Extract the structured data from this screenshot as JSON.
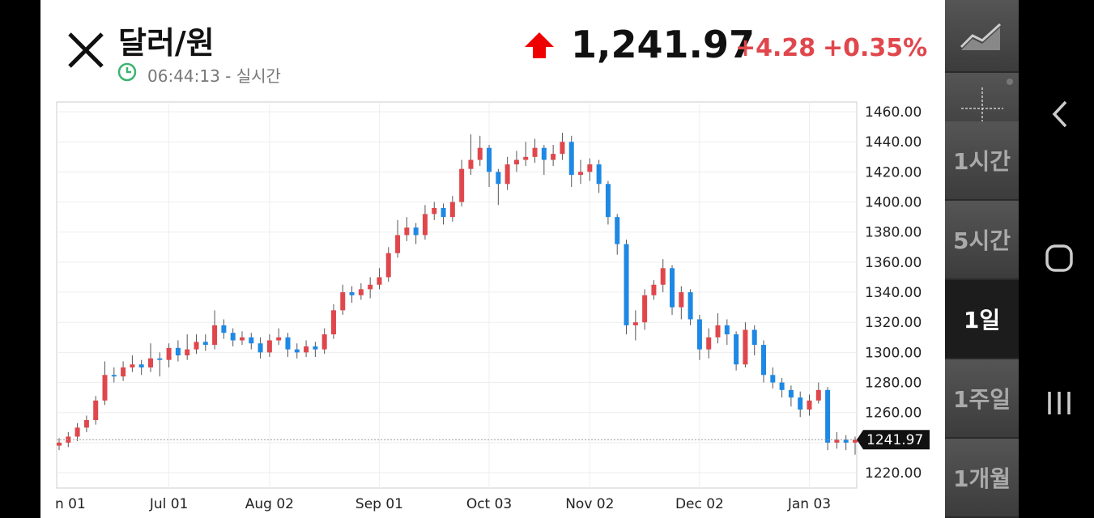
{
  "header": {
    "title": "달러/원",
    "time": "06:44:13 - 실시간",
    "price": "1,241.97",
    "change": "+4.28",
    "change_pct": "+0.35%"
  },
  "sidebar": {
    "intervals": [
      "1시간",
      "5시간",
      "1일",
      "1주일",
      "1개월"
    ],
    "selected": 2
  },
  "chart_data": {
    "type": "candlestick",
    "up_color": "#e0474c",
    "down_color": "#1e88e5",
    "categories": [
      "n 01",
      null,
      null,
      null,
      null,
      null,
      null,
      null,
      null,
      null,
      null,
      null,
      "Jul 01",
      null,
      null,
      null,
      null,
      null,
      null,
      null,
      null,
      null,
      null,
      "Aug 02",
      null,
      null,
      null,
      null,
      null,
      null,
      null,
      null,
      null,
      null,
      null,
      "Sep 01",
      null,
      null,
      null,
      null,
      null,
      null,
      null,
      null,
      null,
      null,
      null,
      "Oct 03",
      null,
      null,
      null,
      null,
      null,
      null,
      null,
      null,
      null,
      null,
      "Nov 02",
      null,
      null,
      null,
      null,
      null,
      null,
      null,
      null,
      null,
      null,
      null,
      "Dec 02",
      null,
      null,
      null,
      null,
      null,
      null,
      null,
      null,
      null,
      null,
      null,
      "Jan 03",
      null,
      null,
      null,
      null,
      null
    ],
    "open": [
      1238,
      1240,
      1244,
      1250,
      1255,
      1268,
      1285,
      1284,
      1290,
      1292,
      1290,
      1296,
      1295,
      1303,
      1298,
      1302,
      1307,
      1305,
      1318,
      1313,
      1308,
      1310,
      1306,
      1300,
      1308,
      1310,
      1302,
      1300,
      1304,
      1302,
      1312,
      1328,
      1340,
      1338,
      1342,
      1345,
      1350,
      1366,
      1378,
      1383,
      1378,
      1392,
      1396,
      1390,
      1400,
      1422,
      1428,
      1436,
      1420,
      1412,
      1425,
      1428,
      1430,
      1436,
      1428,
      1432,
      1440,
      1418,
      1420,
      1425,
      1412,
      1390,
      1372,
      1318,
      1320,
      1338,
      1345,
      1356,
      1330,
      1340,
      1322,
      1302,
      1310,
      1318,
      1312,
      1292,
      1315,
      1305,
      1285,
      1280,
      1275,
      1270,
      1262,
      1268,
      1275,
      1240,
      1242,
      1240
    ],
    "high": [
      1243,
      1247,
      1253,
      1258,
      1271,
      1294,
      1290,
      1294,
      1298,
      1295,
      1306,
      1300,
      1306,
      1308,
      1312,
      1312,
      1312,
      1328,
      1322,
      1316,
      1314,
      1313,
      1310,
      1312,
      1316,
      1313,
      1306,
      1308,
      1307,
      1316,
      1332,
      1345,
      1344,
      1346,
      1350,
      1356,
      1370,
      1388,
      1390,
      1386,
      1398,
      1400,
      1399,
      1404,
      1428,
      1445,
      1444,
      1438,
      1422,
      1430,
      1434,
      1440,
      1442,
      1438,
      1438,
      1446,
      1444,
      1428,
      1429,
      1428,
      1414,
      1392,
      1375,
      1328,
      1342,
      1348,
      1362,
      1358,
      1344,
      1342,
      1325,
      1316,
      1326,
      1322,
      1314,
      1320,
      1318,
      1308,
      1290,
      1283,
      1278,
      1274,
      1272,
      1280,
      1277,
      1247,
      1245,
      1244
    ],
    "low": [
      1235,
      1237,
      1241,
      1247,
      1252,
      1265,
      1280,
      1281,
      1287,
      1285,
      1287,
      1284,
      1290,
      1294,
      1295,
      1299,
      1301,
      1302,
      1309,
      1304,
      1305,
      1302,
      1296,
      1297,
      1305,
      1297,
      1296,
      1297,
      1297,
      1299,
      1309,
      1325,
      1333,
      1335,
      1336,
      1342,
      1347,
      1363,
      1374,
      1372,
      1375,
      1388,
      1385,
      1387,
      1397,
      1418,
      1424,
      1410,
      1398,
      1408,
      1420,
      1424,
      1426,
      1418,
      1424,
      1428,
      1410,
      1412,
      1414,
      1406,
      1385,
      1365,
      1312,
      1308,
      1315,
      1335,
      1340,
      1325,
      1322,
      1318,
      1295,
      1296,
      1306,
      1305,
      1288,
      1290,
      1298,
      1280,
      1276,
      1270,
      1264,
      1257,
      1258,
      1266,
      1235,
      1236,
      1235,
      1232
    ],
    "close": [
      1240,
      1244,
      1250,
      1255,
      1268,
      1285,
      1284,
      1290,
      1292,
      1290,
      1296,
      1295,
      1303,
      1298,
      1302,
      1307,
      1305,
      1318,
      1313,
      1308,
      1310,
      1306,
      1300,
      1308,
      1310,
      1302,
      1300,
      1304,
      1302,
      1312,
      1328,
      1340,
      1338,
      1342,
      1345,
      1350,
      1366,
      1378,
      1383,
      1378,
      1392,
      1396,
      1390,
      1400,
      1422,
      1428,
      1436,
      1420,
      1412,
      1425,
      1428,
      1430,
      1436,
      1428,
      1432,
      1440,
      1418,
      1420,
      1425,
      1412,
      1390,
      1372,
      1318,
      1320,
      1338,
      1345,
      1356,
      1330,
      1340,
      1322,
      1302,
      1310,
      1318,
      1312,
      1292,
      1315,
      1305,
      1285,
      1280,
      1275,
      1270,
      1262,
      1268,
      1275,
      1240,
      1242,
      1240,
      1241.97
    ],
    "last_price": 1241.97,
    "ylim": [
      1209.8,
      1466.5
    ],
    "yticks": [
      {
        "value": 1220,
        "label": "1220.00"
      },
      {
        "value": 1240,
        "label": "1240.00"
      },
      {
        "value": 1260,
        "label": "1260.00"
      },
      {
        "value": 1280,
        "label": "1280.00"
      },
      {
        "value": 1300,
        "label": "1300.00"
      },
      {
        "value": 1320,
        "label": "1320.00"
      },
      {
        "value": 1340,
        "label": "1340.00"
      },
      {
        "value": 1360,
        "label": "1360.00"
      },
      {
        "value": 1380,
        "label": "1380.00"
      },
      {
        "value": 1400,
        "label": "1400.00"
      },
      {
        "value": 1420,
        "label": "1420.00"
      },
      {
        "value": 1440,
        "label": "1440.00"
      },
      {
        "value": 1460,
        "label": "1460.00"
      }
    ],
    "grid": true
  }
}
